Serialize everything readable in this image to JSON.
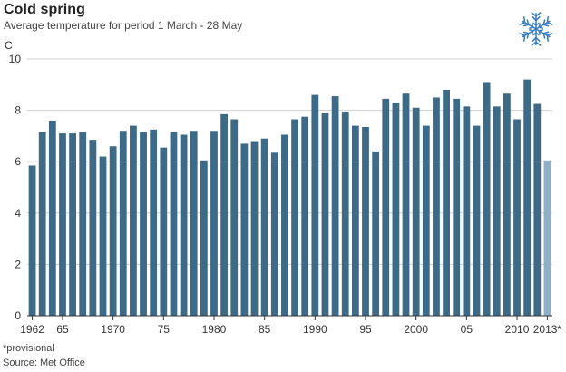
{
  "header": {
    "title": "Cold spring",
    "subtitle": "Average temperature for period 1 March - 28 May",
    "icon": "snowflake-icon"
  },
  "footer": {
    "footnote": "*provisional",
    "source": "Source: Met Office"
  },
  "colors": {
    "bar": "#3d6a87",
    "bar_provisional": "#8fb0c4",
    "grid": "#d0d0d0",
    "axis": "#333333",
    "snowflake": "#3a7bbf"
  },
  "chart_data": {
    "type": "bar",
    "title": "Cold spring",
    "subtitle": "Average temperature for period 1 March - 28 May",
    "ylabel": "C",
    "xlabel": "",
    "ylim": [
      0,
      10
    ],
    "yticks": [
      0,
      2,
      4,
      6,
      8,
      10
    ],
    "grid": true,
    "legend": "none",
    "x_tick_labels": [
      {
        "year": 1962,
        "label": "1962"
      },
      {
        "year": 1965,
        "label": "65"
      },
      {
        "year": 1970,
        "label": "1970"
      },
      {
        "year": 1975,
        "label": "75"
      },
      {
        "year": 1980,
        "label": "1980"
      },
      {
        "year": 1985,
        "label": "85"
      },
      {
        "year": 1990,
        "label": "1990"
      },
      {
        "year": 1995,
        "label": "95"
      },
      {
        "year": 2000,
        "label": "2000"
      },
      {
        "year": 2005,
        "label": "05"
      },
      {
        "year": 2010,
        "label": "2010"
      },
      {
        "year": 2013,
        "label": "2013*"
      }
    ],
    "categories": [
      1962,
      1963,
      1964,
      1965,
      1966,
      1967,
      1968,
      1969,
      1970,
      1971,
      1972,
      1973,
      1974,
      1975,
      1976,
      1977,
      1978,
      1979,
      1980,
      1981,
      1982,
      1983,
      1984,
      1985,
      1986,
      1987,
      1988,
      1989,
      1990,
      1991,
      1992,
      1993,
      1994,
      1995,
      1996,
      1997,
      1998,
      1999,
      2000,
      2001,
      2002,
      2003,
      2004,
      2005,
      2006,
      2007,
      2008,
      2009,
      2010,
      2011,
      2012,
      2013
    ],
    "values": [
      5.85,
      7.15,
      7.6,
      7.1,
      7.1,
      7.15,
      6.85,
      6.2,
      6.6,
      7.2,
      7.4,
      7.15,
      7.25,
      6.55,
      7.15,
      7.05,
      7.2,
      6.05,
      7.2,
      7.85,
      7.65,
      6.7,
      6.8,
      6.9,
      6.35,
      7.05,
      7.65,
      7.75,
      8.6,
      7.9,
      8.55,
      7.95,
      7.4,
      7.35,
      6.4,
      8.45,
      8.3,
      8.65,
      8.1,
      7.4,
      8.5,
      8.8,
      8.45,
      8.15,
      7.4,
      9.1,
      8.15,
      8.65,
      7.65,
      9.2,
      8.25,
      6.05
    ],
    "provisional": [
      2013
    ]
  }
}
